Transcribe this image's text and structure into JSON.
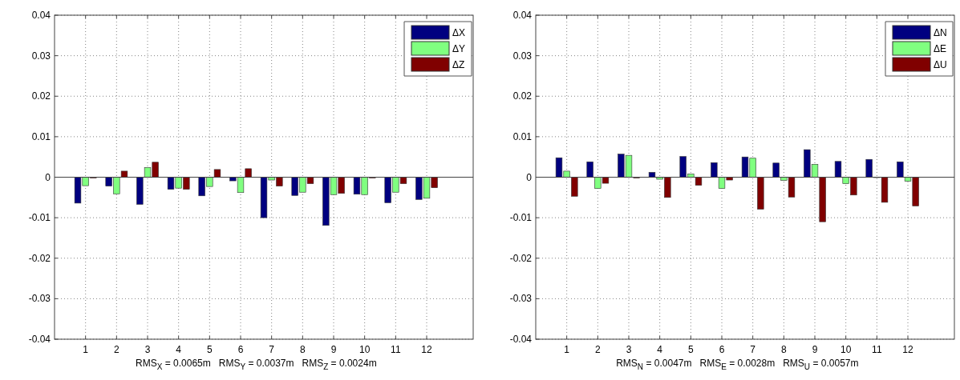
{
  "chart_data": [
    {
      "type": "bar",
      "x": [
        1,
        2,
        3,
        4,
        5,
        6,
        7,
        8,
        9,
        10,
        11,
        12
      ],
      "xlim": [
        0,
        13.5
      ],
      "xticks": [
        1,
        2,
        3,
        4,
        5,
        6,
        7,
        8,
        9,
        10,
        11,
        12
      ],
      "ylim": [
        -0.04,
        0.04
      ],
      "yticks": [
        -0.04,
        -0.03,
        -0.02,
        -0.01,
        0,
        0.01,
        0.02,
        0.03,
        0.04
      ],
      "xlabel": "RMS$_{X}$ = 0.0065m   RMS$_{Y}$ = 0.0037m   RMS$_{Z}$ = 0.0024m",
      "grid": true,
      "legend": "top right",
      "series": [
        {
          "name": "ΔX",
          "color": "#000080",
          "values": [
            -0.0064,
            -0.0022,
            -0.0067,
            -0.003,
            -0.0046,
            -0.0009,
            -0.01,
            -0.0045,
            -0.0119,
            -0.0042,
            -0.0063,
            -0.0055
          ]
        },
        {
          "name": "ΔY",
          "color": "#80ff80",
          "values": [
            -0.0021,
            -0.0041,
            0.0024,
            -0.0027,
            -0.0023,
            -0.0038,
            -0.0007,
            -0.0037,
            -0.0043,
            -0.0043,
            -0.0037,
            -0.0052
          ]
        },
        {
          "name": "ΔZ",
          "color": "#800000",
          "values": [
            -0.0002,
            0.0015,
            0.0037,
            -0.003,
            0.0019,
            0.0021,
            -0.0022,
            -0.0016,
            -0.004,
            -0.0002,
            -0.0016,
            -0.0026
          ]
        }
      ]
    },
    {
      "type": "bar",
      "x": [
        1,
        2,
        3,
        4,
        5,
        6,
        7,
        8,
        9,
        10,
        11,
        12
      ],
      "xlim": [
        0,
        13.5
      ],
      "xticks": [
        1,
        2,
        3,
        4,
        5,
        6,
        7,
        8,
        9,
        10,
        11,
        12
      ],
      "ylim": [
        -0.04,
        0.04
      ],
      "yticks": [
        -0.04,
        -0.03,
        -0.02,
        -0.01,
        0,
        0.01,
        0.02,
        0.03,
        0.04
      ],
      "xlabel": "RMS$_{N}$ = 0.0047m   RMS$_{E}$ = 0.0028m   RMS$_{U}$ = 0.0057m",
      "grid": true,
      "legend": "top right",
      "series": [
        {
          "name": "ΔN",
          "color": "#000080",
          "values": [
            0.0048,
            0.0038,
            0.0057,
            0.0012,
            0.0051,
            0.0036,
            0.005,
            0.0035,
            0.0068,
            0.0039,
            0.0044,
            0.0038
          ]
        },
        {
          "name": "ΔE",
          "color": "#80ff80",
          "values": [
            0.0015,
            -0.0028,
            0.0054,
            -0.0005,
            0.0008,
            -0.0028,
            0.0047,
            -0.0008,
            0.0032,
            -0.0016,
            -0.0001,
            -0.001
          ]
        },
        {
          "name": "ΔU",
          "color": "#800000",
          "values": [
            -0.0047,
            -0.0015,
            -0.0002,
            -0.005,
            -0.002,
            -0.0007,
            -0.0079,
            -0.0049,
            -0.011,
            -0.0044,
            -0.0062,
            -0.0071
          ]
        }
      ]
    }
  ]
}
